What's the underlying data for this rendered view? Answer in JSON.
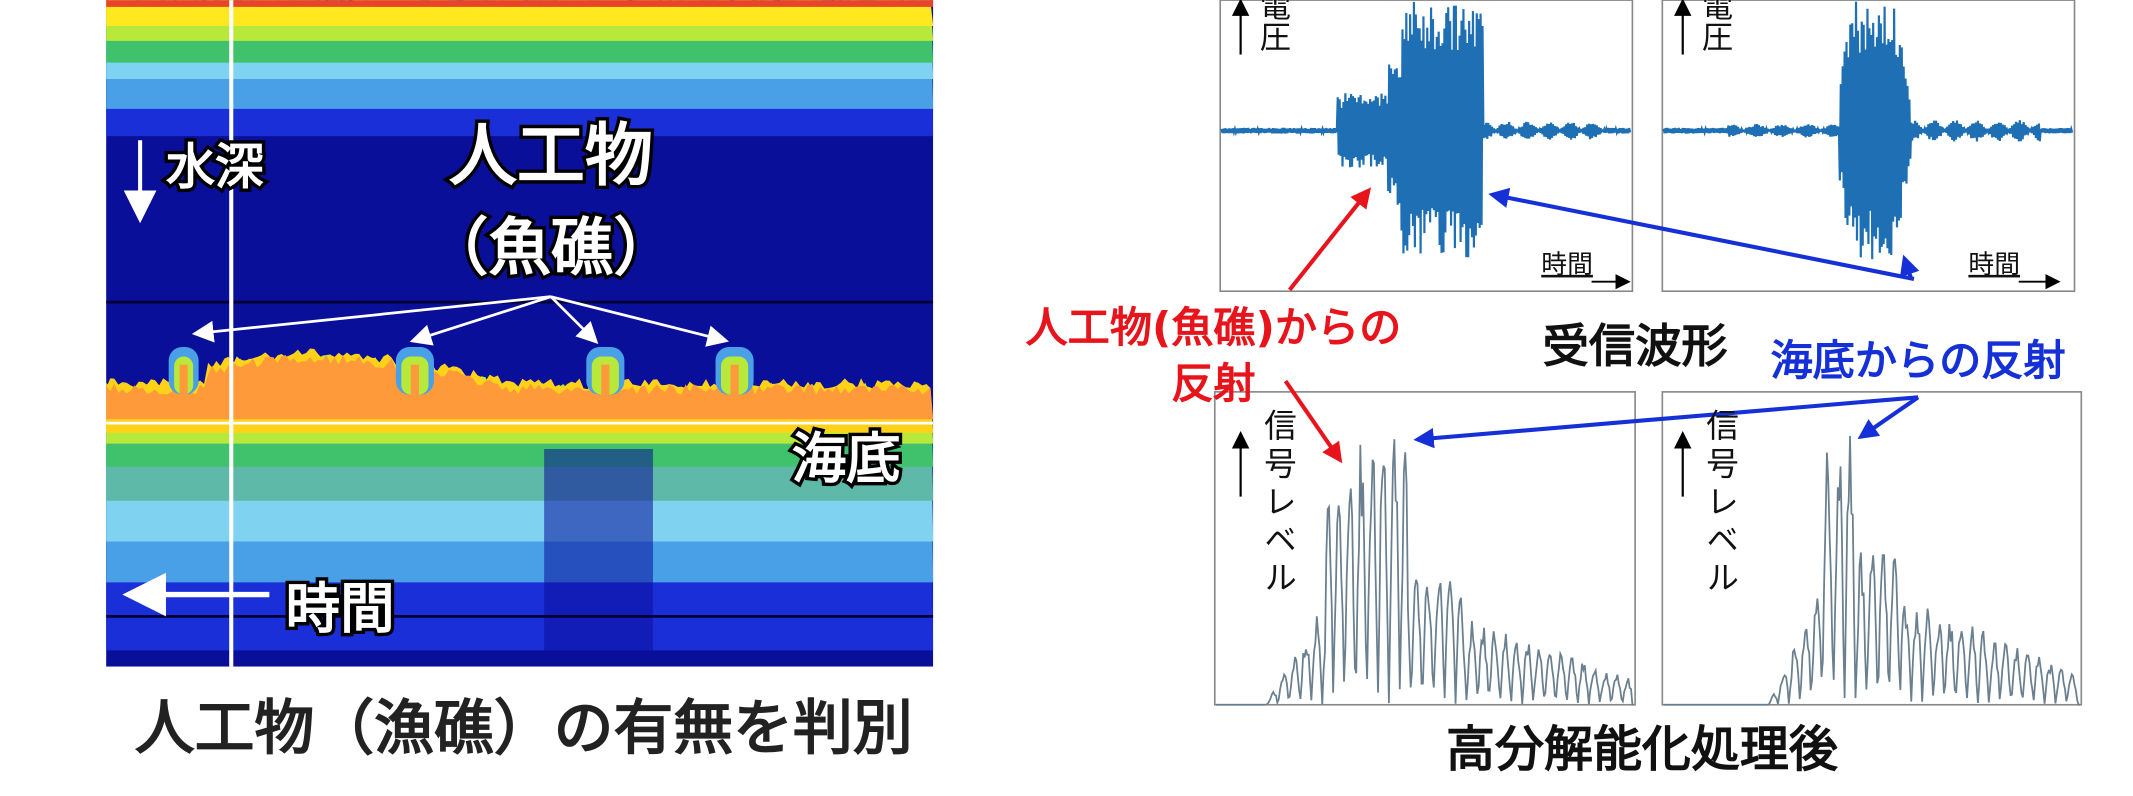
{
  "sonar": {
    "depth_label": "水深",
    "object_label": "人工物",
    "object_sub": "（魚礁）",
    "seabed_label": "海底",
    "time_label": "時間",
    "caption": "人工物（漁礁）の有無を判別"
  },
  "waveforms": {
    "title": "受信波形",
    "panels": [
      {
        "y_label": "電圧",
        "x_label": "時間"
      },
      {
        "y_label": "電圧",
        "x_label": "時間"
      }
    ]
  },
  "processed": {
    "title": "高分解能化処理後",
    "panels": [
      {
        "y_label": "信号レベル"
      },
      {
        "y_label": "信号レベル"
      }
    ]
  },
  "annotations": {
    "artificial": "人工物(魚礁)からの",
    "artificial_2": "反射",
    "seabed": "海底からの反射"
  }
}
